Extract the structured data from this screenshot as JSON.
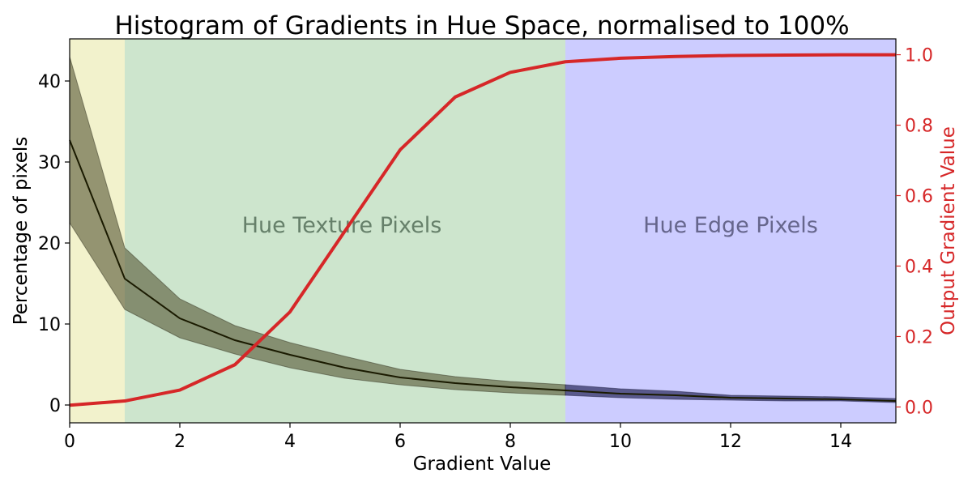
{
  "chart_data": {
    "type": "line",
    "title": "Histogram of Gradients in Hue Space, normalised to 100%",
    "xlabel": "Gradient Value",
    "ylabel": "Percentage of pixels",
    "y2label": "Output Gradient Value",
    "xlim": [
      0,
      15
    ],
    "ylim": [
      -2.2,
      45.2
    ],
    "y2lim": [
      -0.045,
      1.045
    ],
    "xticks": [
      0,
      2,
      4,
      6,
      8,
      10,
      12,
      14
    ],
    "yticks": [
      0,
      10,
      20,
      30,
      40
    ],
    "y2ticks": [
      "0.0",
      "0.2",
      "0.4",
      "0.6",
      "0.8",
      "1.0"
    ],
    "grid": false,
    "regions": [
      {
        "x0": 0,
        "x1": 1,
        "color": "#f2f2cc"
      },
      {
        "x0": 1,
        "x1": 9,
        "color": "#cde5cd",
        "label": "Hue Texture Pixels",
        "label_color": "#66806a"
      },
      {
        "x0": 9,
        "x1": 15,
        "color": "#ccccff",
        "label": "Hue Edge Pixels",
        "label_color": "#66668c"
      }
    ],
    "histogram": {
      "x": [
        0,
        1,
        2,
        3,
        4,
        5,
        6,
        7,
        8,
        9,
        10,
        11,
        12,
        13,
        14,
        15
      ],
      "mean": [
        32.7,
        15.6,
        10.7,
        8.0,
        6.2,
        4.6,
        3.4,
        2.7,
        2.2,
        1.8,
        1.4,
        1.2,
        0.9,
        0.8,
        0.7,
        0.5
      ],
      "upper": [
        43.0,
        19.4,
        13.1,
        9.8,
        7.7,
        6.0,
        4.4,
        3.5,
        2.9,
        2.5,
        2.0,
        1.7,
        1.2,
        1.1,
        1.0,
        0.8
      ],
      "lower": [
        22.5,
        11.8,
        8.3,
        6.3,
        4.6,
        3.3,
        2.5,
        1.9,
        1.5,
        1.2,
        0.9,
        0.7,
        0.6,
        0.5,
        0.5,
        0.3
      ],
      "line_color": "#1a1a00",
      "band_colors": {
        "texture": "#555533",
        "edge": "#333366"
      }
    },
    "output_curve": {
      "x": [
        0,
        1,
        2,
        3,
        4,
        5,
        6,
        7,
        8,
        9,
        10,
        11,
        12,
        13,
        14,
        15
      ],
      "y": [
        0.005,
        0.017,
        0.048,
        0.12,
        0.27,
        0.5,
        0.73,
        0.88,
        0.95,
        0.98,
        0.99,
        0.995,
        0.998,
        0.999,
        1.0,
        1.0
      ],
      "color": "#d62728"
    }
  }
}
